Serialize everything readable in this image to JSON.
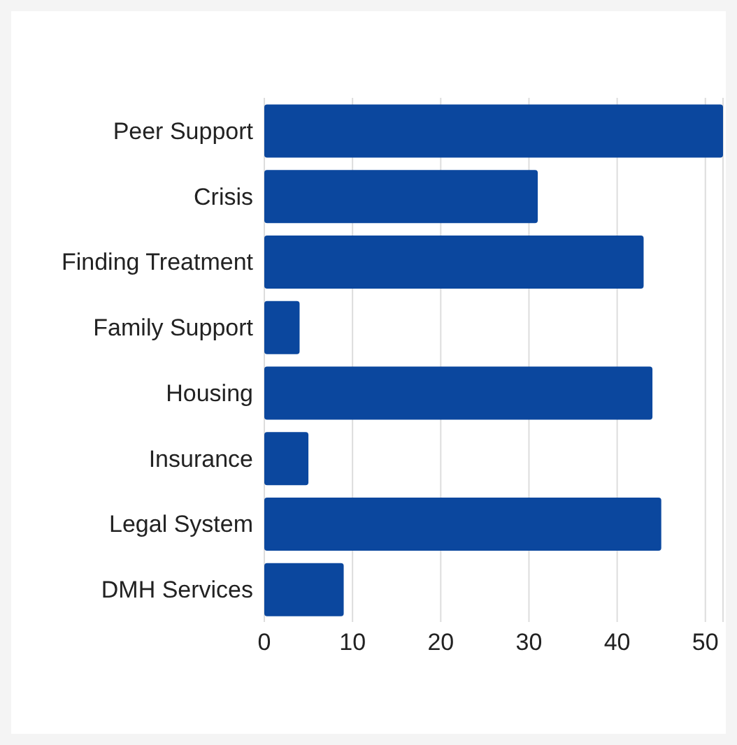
{
  "chart_data": {
    "type": "bar",
    "orientation": "horizontal",
    "categories": [
      "Peer Support",
      "Crisis",
      "Finding Treatment",
      "Family Support",
      "Housing",
      "Insurance",
      "Legal System",
      "DMH Services"
    ],
    "values": [
      52,
      31,
      43,
      4,
      44,
      5,
      45,
      9
    ],
    "color": "#0b479e",
    "xlim": [
      0,
      52
    ],
    "xticks": [
      0,
      10,
      20,
      30,
      40,
      50
    ],
    "grid": "x",
    "legend": false
  }
}
